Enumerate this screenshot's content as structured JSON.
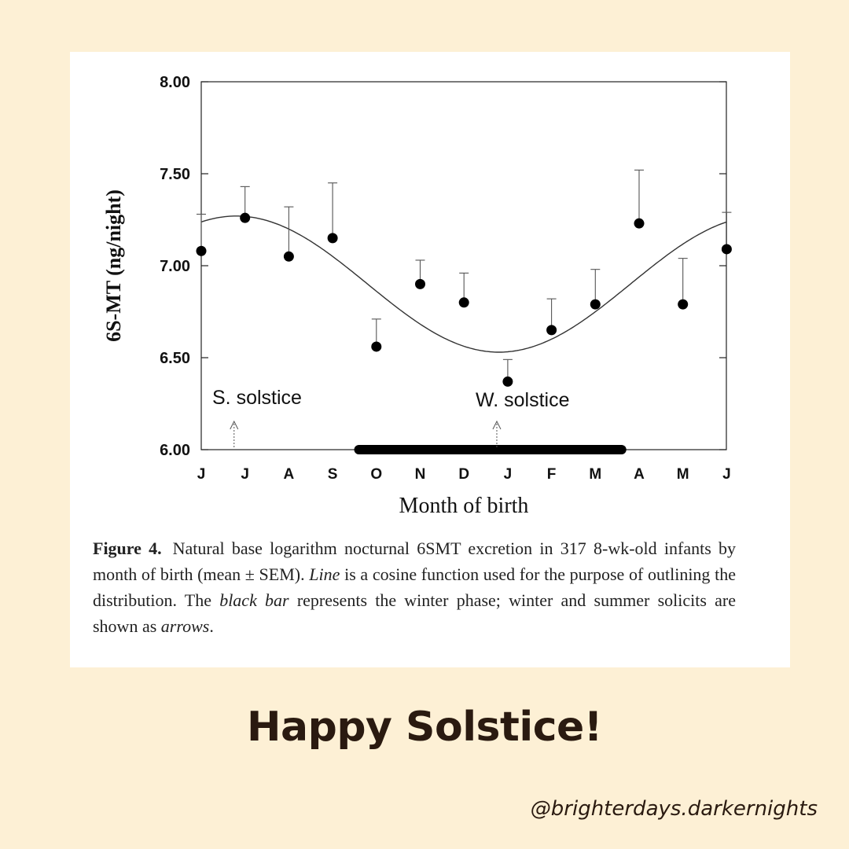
{
  "chart_data": {
    "type": "scatter",
    "xlabel": "Month of birth",
    "ylabel": "6S-MT (ng/night)",
    "ylim": [
      6.0,
      8.0
    ],
    "yticks": [
      6.0,
      6.5,
      7.0,
      7.5,
      8.0
    ],
    "ytick_labels": [
      "6.00",
      "6.50",
      "7.00",
      "7.50",
      "8.00"
    ],
    "categories": [
      "J",
      "J",
      "A",
      "S",
      "O",
      "N",
      "D",
      "J",
      "F",
      "M",
      "A",
      "M",
      "J"
    ],
    "means": [
      7.08,
      7.26,
      7.05,
      7.15,
      6.56,
      6.9,
      6.8,
      6.37,
      6.65,
      6.79,
      7.23,
      6.79,
      7.09
    ],
    "upper_errors": [
      7.28,
      7.43,
      7.32,
      7.45,
      6.71,
      7.03,
      6.96,
      6.49,
      6.82,
      6.98,
      7.52,
      7.04,
      7.29
    ],
    "curve": {
      "type": "cosine",
      "max": 7.27,
      "min": 6.53,
      "peak_at_month_index": 0.8
    },
    "winter_bar": {
      "from_month_index": 3.6,
      "to_month_index": 9.6
    },
    "annotations": [
      {
        "text": "S.  solstice",
        "arrow_at_month_index": 0.75
      },
      {
        "text": "W.  solstice",
        "arrow_at_month_index": 6.75
      }
    ]
  },
  "caption": {
    "label": "Figure 4.",
    "text1": "Natural base logarithm nocturnal 6SMT excretion in 317 8-wk-old infants by month of birth (mean ± SEM). ",
    "italic1": "Line",
    "text2": " is a cosine function used for the purpose of outlining the distribution. The ",
    "italic2": "black bar",
    "text3": " represents the winter phase; winter and summer solicits are shown as ",
    "italic3": "arrows",
    "text4": "."
  },
  "headline": "Happy Solstice!",
  "handle": "@brighterdays.darkernights"
}
